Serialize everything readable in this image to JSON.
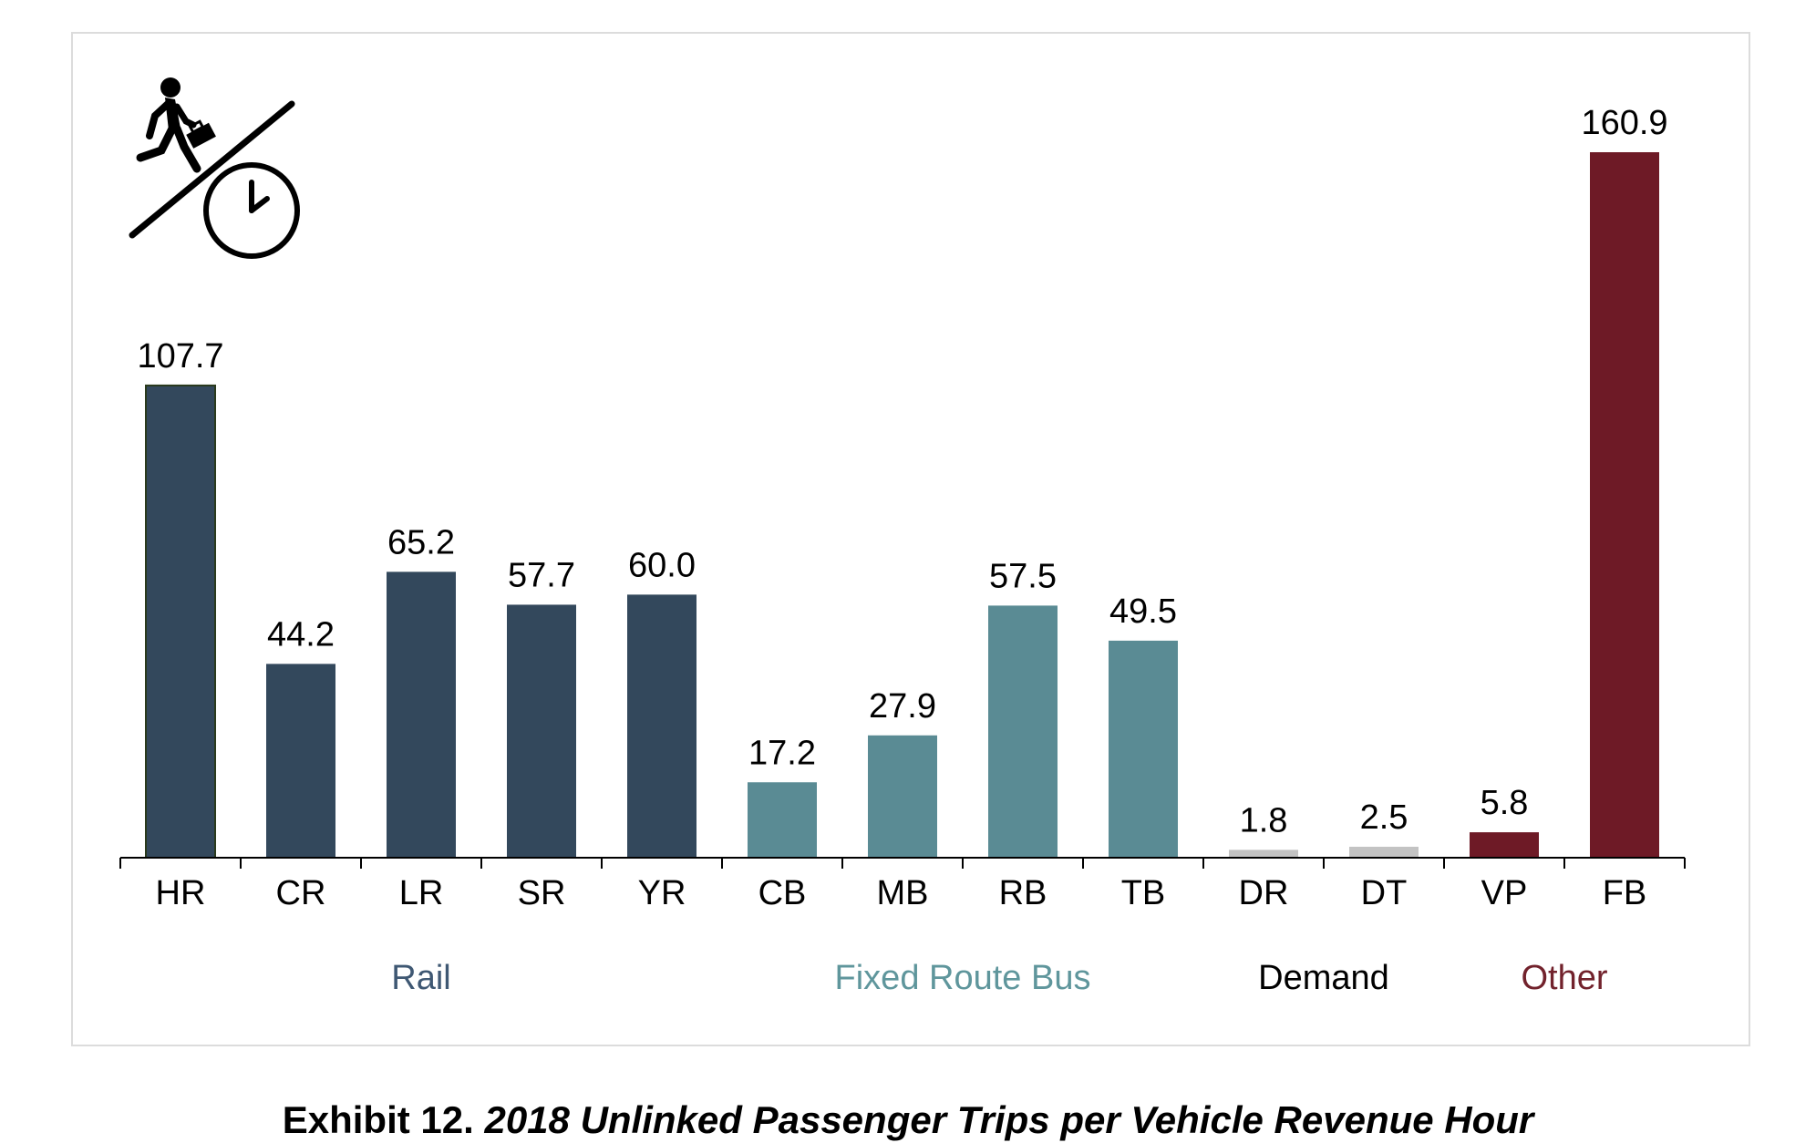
{
  "chart_data": {
    "type": "bar",
    "categories": [
      "HR",
      "CR",
      "LR",
      "SR",
      "YR",
      "CB",
      "MB",
      "RB",
      "TB",
      "DR",
      "DT",
      "VP",
      "FB"
    ],
    "values": [
      107.7,
      44.2,
      65.2,
      57.7,
      60.0,
      17.2,
      27.9,
      57.5,
      49.5,
      1.8,
      2.5,
      5.8,
      160.9
    ],
    "value_labels": [
      "107.7",
      "44.2",
      "65.2",
      "57.7",
      "60.0",
      "17.2",
      "27.9",
      "57.5",
      "49.5",
      "1.8",
      "2.5",
      "5.8",
      "160.9"
    ],
    "groups": [
      {
        "label": "Rail",
        "categories": [
          "HR",
          "CR",
          "LR",
          "SR",
          "YR"
        ],
        "color": "#33485c"
      },
      {
        "label": "Fixed Route Bus",
        "categories": [
          "CB",
          "MB",
          "RB",
          "TB"
        ],
        "color": "#5a8b94"
      },
      {
        "label": "Demand",
        "categories": [
          "DR",
          "DT"
        ],
        "color": "#c3c3c3"
      },
      {
        "label": "Other",
        "categories": [
          "VP",
          "FB"
        ],
        "color": "#6e1a26"
      }
    ],
    "group_label_colors": [
      "#3f5873",
      "#5f969c",
      "#000000",
      "#72222c"
    ],
    "ylim": [
      0,
      170
    ],
    "grid": false,
    "legend": "none",
    "icon": "commuter-per-clock-icon"
  },
  "caption": {
    "prefix": "Exhibit 12.",
    "title": "2018 Unlinked Passenger Trips per Vehicle Revenue Hour"
  }
}
